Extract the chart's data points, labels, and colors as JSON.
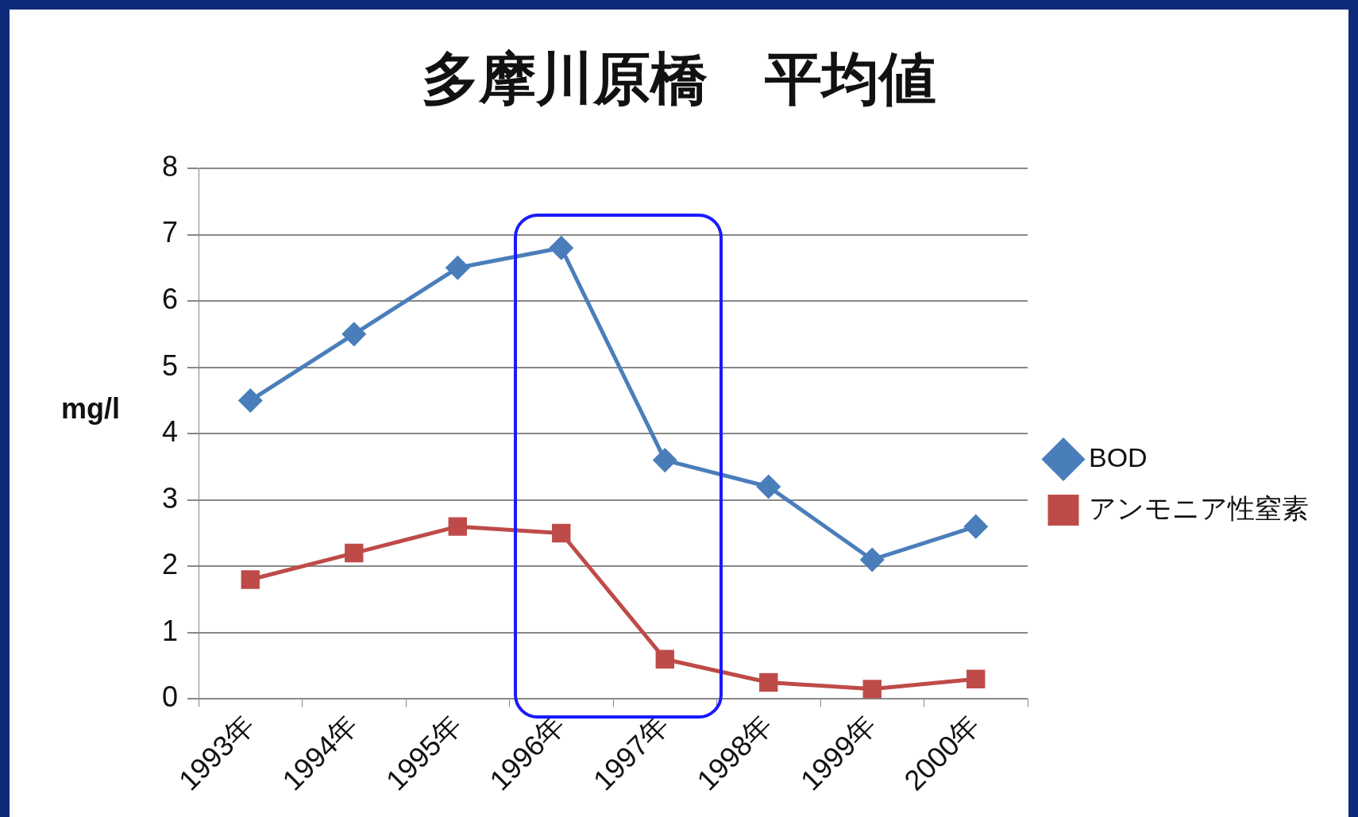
{
  "chart_data": {
    "type": "line",
    "title": "多摩川原橋　平均値",
    "ylabel": "mg/l",
    "categories": [
      "1993年",
      "1994年",
      "1995年",
      "1996年",
      "1997年",
      "1998年",
      "1999年",
      "2000年"
    ],
    "series": [
      {
        "name": "BOD",
        "color": "#4a7ebb",
        "marker": "diamond",
        "values": [
          4.5,
          5.5,
          6.5,
          6.8,
          3.6,
          3.2,
          2.1,
          2.6
        ]
      },
      {
        "name": "アンモニア性窒素",
        "color": "#be4b48",
        "marker": "square",
        "values": [
          1.8,
          2.2,
          2.6,
          2.5,
          0.6,
          0.25,
          0.15,
          0.3
        ]
      }
    ],
    "ylim": [
      0,
      8
    ],
    "yticks": [
      0,
      1,
      2,
      3,
      4,
      5,
      6,
      7,
      8
    ],
    "grid": "y",
    "legend": "right",
    "line_style": "solid"
  }
}
